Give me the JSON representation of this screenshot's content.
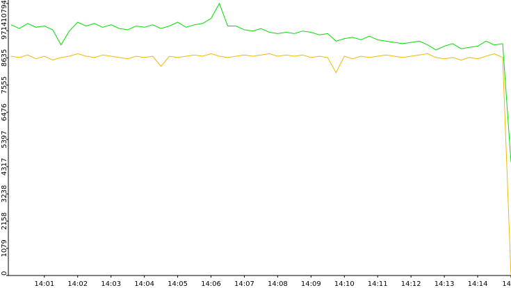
{
  "chart_data": {
    "type": "line",
    "x": [
      0,
      0.25,
      0.5,
      0.75,
      1,
      1.25,
      1.5,
      1.75,
      2,
      2.25,
      2.5,
      2.75,
      3,
      3.25,
      3.5,
      3.75,
      4,
      4.25,
      4.5,
      4.75,
      5,
      5.25,
      5.5,
      5.75,
      6,
      6.25,
      6.5,
      6.75,
      7,
      7.25,
      7.5,
      7.75,
      8,
      8.25,
      8.5,
      8.75,
      9,
      9.25,
      9.5,
      9.75,
      10,
      10.25,
      10.5,
      10.75,
      11,
      11.25,
      11.5,
      11.75,
      12,
      12.25,
      12.5,
      12.75,
      13,
      13.25,
      13.5,
      13.75,
      14,
      14.25,
      14.5,
      14.75,
      15
    ],
    "series": [
      {
        "color": "#00dd00",
        "values": [
          9950,
          9800,
          10000,
          9850,
          9900,
          9750,
          9150,
          9700,
          10050,
          9900,
          10000,
          9850,
          9950,
          9800,
          9750,
          9900,
          9850,
          9950,
          9800,
          9900,
          10050,
          9850,
          9950,
          10000,
          10200,
          10794,
          9900,
          9900,
          9750,
          9700,
          9800,
          9650,
          9600,
          9650,
          9600,
          9700,
          9650,
          9550,
          9600,
          9300,
          9400,
          9450,
          9350,
          9500,
          9350,
          9300,
          9250,
          9200,
          9250,
          9300,
          9150,
          8950,
          9100,
          9200,
          9000,
          9050,
          9100,
          9300,
          9150,
          9200,
          4500
        ]
      },
      {
        "color": "#f0b800",
        "values": [
          8700,
          8650,
          8750,
          8600,
          8700,
          8550,
          8650,
          8700,
          8800,
          8700,
          8650,
          8750,
          8700,
          8650,
          8600,
          8700,
          8650,
          8700,
          8300,
          8700,
          8650,
          8700,
          8750,
          8700,
          8800,
          8700,
          8650,
          8700,
          8750,
          8700,
          8750,
          8800,
          8700,
          8750,
          8700,
          8750,
          8650,
          8700,
          8650,
          8050,
          8700,
          8600,
          8700,
          8650,
          8700,
          8750,
          8700,
          8650,
          8700,
          8750,
          8800,
          8650,
          8600,
          8650,
          8550,
          8650,
          8600,
          8700,
          8800,
          8650,
          0
        ]
      }
    ],
    "xlim": [
      -0.08,
      15
    ],
    "xticks": [
      {
        "value": 1,
        "label": "14:01"
      },
      {
        "value": 2,
        "label": "14:02"
      },
      {
        "value": 3,
        "label": "14:03"
      },
      {
        "value": 4,
        "label": "14:04"
      },
      {
        "value": 5,
        "label": "14:05"
      },
      {
        "value": 6,
        "label": "14:06"
      },
      {
        "value": 7,
        "label": "14:07"
      },
      {
        "value": 8,
        "label": "14:08"
      },
      {
        "value": 9,
        "label": "14:09"
      },
      {
        "value": 10,
        "label": "14:10"
      },
      {
        "value": 11,
        "label": "14:11"
      },
      {
        "value": 12,
        "label": "14:12"
      },
      {
        "value": 13,
        "label": "14:13"
      },
      {
        "value": 14,
        "label": "14:14"
      },
      {
        "value": 15,
        "label": "14"
      }
    ],
    "ylim": [
      0,
      10794
    ],
    "yticks": [
      0,
      1079,
      2158,
      3238,
      4317,
      5397,
      6476,
      7555,
      8635,
      9714,
      10794
    ]
  }
}
